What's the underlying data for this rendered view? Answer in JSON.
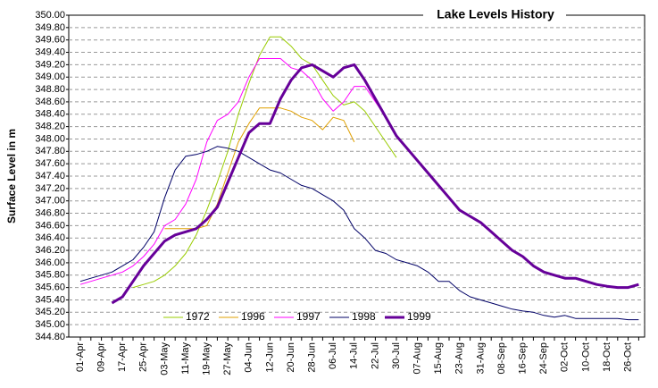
{
  "chart_data": {
    "type": "line",
    "title": "Lake Levels History",
    "y_label": "Surface Level in m",
    "categories": [
      "01-Apr",
      null,
      "09-Apr",
      null,
      "17-Apr",
      null,
      "25-Apr",
      null,
      "03-May",
      null,
      "11-May",
      null,
      "19-May",
      null,
      "27-May",
      null,
      "04-Jun",
      null,
      "12-Jun",
      null,
      "20-Jun",
      null,
      "28-Jun",
      null,
      "06-Jul",
      null,
      "14-Jul",
      null,
      "22-Jul",
      null,
      "30-Jul",
      null,
      "07-Aug",
      null,
      "15-Aug",
      null,
      "23-Aug",
      null,
      "31-Aug",
      null,
      "08-Sep",
      null,
      "16-Sep",
      null,
      "24-Sep",
      null,
      "02-Oct",
      null,
      "10-Oct",
      null,
      "18-Oct",
      null,
      "26-Oct",
      null
    ],
    "series": [
      {
        "name": "1972",
        "color": "#99cc00",
        "width": 1,
        "values": [
          null,
          null,
          null,
          null,
          null,
          345.6,
          345.65,
          345.7,
          345.8,
          345.95,
          346.15,
          346.45,
          346.85,
          347.3,
          347.8,
          348.4,
          348.9,
          349.35,
          349.65,
          349.65,
          349.5,
          349.3,
          349.2,
          348.95,
          348.7,
          348.55,
          348.6,
          348.45,
          348.2,
          347.95,
          347.7,
          null,
          null,
          null,
          null,
          null,
          null,
          null,
          null,
          null,
          null,
          null,
          null,
          null,
          null,
          null,
          null,
          null,
          null,
          null,
          null,
          null,
          null,
          null
        ]
      },
      {
        "name": "1996",
        "color": "#e0a000",
        "width": 1,
        "values": [
          null,
          null,
          null,
          null,
          null,
          null,
          null,
          null,
          346.55,
          346.55,
          346.55,
          346.55,
          346.6,
          346.95,
          347.45,
          347.95,
          348.25,
          348.5,
          348.5,
          348.5,
          348.45,
          348.35,
          348.3,
          348.15,
          348.35,
          348.3,
          347.95,
          null,
          null,
          null,
          null,
          null,
          null,
          null,
          null,
          null,
          null,
          null,
          null,
          null,
          null,
          null,
          null,
          null,
          null,
          null,
          null,
          null,
          null,
          null,
          null,
          null,
          null,
          null
        ]
      },
      {
        "name": "1997",
        "color": "#ff00ff",
        "width": 1,
        "values": [
          345.65,
          345.7,
          345.75,
          345.8,
          345.85,
          345.95,
          346.1,
          346.3,
          346.6,
          346.7,
          346.95,
          347.35,
          347.95,
          348.3,
          348.4,
          348.6,
          349.0,
          349.3,
          349.3,
          349.3,
          349.15,
          349.1,
          348.95,
          348.65,
          348.45,
          348.6,
          348.85,
          348.85,
          348.6,
          348.35,
          null,
          null,
          null,
          null,
          null,
          null,
          null,
          null,
          null,
          null,
          null,
          null,
          null,
          null,
          null,
          null,
          null,
          null,
          null,
          null,
          null,
          null,
          null,
          null
        ]
      },
      {
        "name": "1998",
        "color": "#000066",
        "width": 1,
        "values": [
          345.7,
          345.75,
          345.8,
          345.85,
          345.95,
          346.05,
          346.25,
          346.5,
          347.05,
          347.5,
          347.72,
          347.75,
          347.8,
          347.88,
          347.85,
          347.8,
          347.7,
          347.6,
          347.5,
          347.45,
          347.35,
          347.25,
          347.2,
          347.1,
          347.0,
          346.85,
          346.55,
          346.4,
          346.2,
          346.15,
          346.05,
          346.0,
          345.95,
          345.85,
          345.7,
          345.7,
          345.55,
          345.45,
          345.4,
          345.35,
          345.3,
          345.25,
          345.22,
          345.2,
          345.15,
          345.12,
          345.15,
          345.1,
          345.1,
          345.1,
          345.1,
          345.1,
          345.08,
          345.08
        ]
      },
      {
        "name": "1999",
        "color": "#660099",
        "width": 3,
        "values": [
          null,
          null,
          null,
          345.35,
          345.45,
          345.7,
          345.95,
          346.15,
          346.35,
          346.45,
          346.5,
          346.55,
          346.7,
          346.9,
          347.3,
          347.7,
          348.1,
          348.25,
          348.25,
          348.65,
          348.95,
          349.15,
          349.2,
          349.1,
          349.0,
          349.15,
          349.2,
          348.95,
          348.65,
          348.35,
          348.05,
          347.85,
          347.65,
          347.45,
          347.25,
          347.05,
          346.85,
          346.75,
          346.65,
          346.5,
          346.35,
          346.2,
          346.1,
          345.95,
          345.85,
          345.8,
          345.75,
          345.75,
          345.7,
          345.65,
          345.62,
          345.6,
          345.6,
          345.65
        ]
      }
    ],
    "ylim": [
      344.8,
      350.0
    ],
    "yticks": [
      {
        "value": 344.8,
        "label": "344.80"
      },
      {
        "value": 345.0,
        "label": "345.00"
      },
      {
        "value": 345.2,
        "label": "345.20"
      },
      {
        "value": 345.4,
        "label": "345.40"
      },
      {
        "value": 345.6,
        "label": "345.60"
      },
      {
        "value": 345.8,
        "label": "345.80"
      },
      {
        "value": 346.0,
        "label": "346.00"
      },
      {
        "value": 346.2,
        "label": "346.20"
      },
      {
        "value": 346.4,
        "label": "346.40"
      },
      {
        "value": 346.6,
        "label": "346.60"
      },
      {
        "value": 346.8,
        "label": "346.80"
      },
      {
        "value": 347.0,
        "label": "347.00"
      },
      {
        "value": 347.2,
        "label": "347.20"
      },
      {
        "value": 347.4,
        "label": "347.40"
      },
      {
        "value": 347.6,
        "label": "347.60"
      },
      {
        "value": 347.8,
        "label": "347.80"
      },
      {
        "value": 348.0,
        "label": "348.00"
      },
      {
        "value": 348.2,
        "label": "348.20"
      },
      {
        "value": 348.4,
        "label": "348.40"
      },
      {
        "value": 348.6,
        "label": "348.60"
      },
      {
        "value": 348.8,
        "label": "348.80"
      },
      {
        "value": 349.0,
        "label": "349.00"
      },
      {
        "value": 349.2,
        "label": "349.20"
      },
      {
        "value": 349.4,
        "label": "349.40"
      },
      {
        "value": 349.6,
        "label": "349.60"
      },
      {
        "value": 349.8,
        "label": "349.80"
      },
      {
        "value": 350.0,
        "label": "350.00"
      }
    ],
    "grid": true,
    "legend": "bottom"
  }
}
